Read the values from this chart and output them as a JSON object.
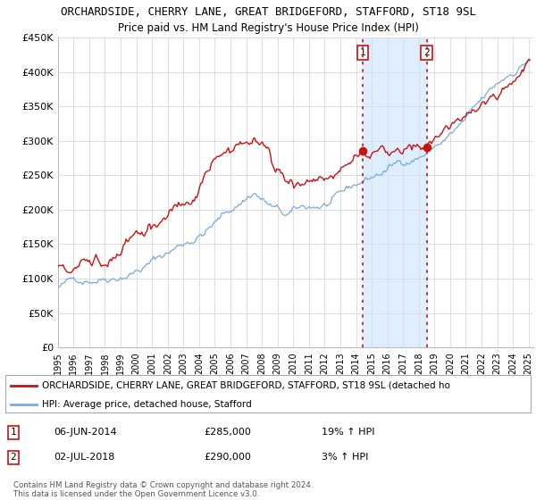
{
  "title": "ORCHARDSIDE, CHERRY LANE, GREAT BRIDGEFORD, STAFFORD, ST18 9SL",
  "subtitle": "Price paid vs. HM Land Registry's House Price Index (HPI)",
  "ylim": [
    0,
    450000
  ],
  "yticks": [
    0,
    50000,
    100000,
    150000,
    200000,
    250000,
    300000,
    350000,
    400000,
    450000
  ],
  "ytick_labels": [
    "£0",
    "£50K",
    "£100K",
    "£150K",
    "£200K",
    "£250K",
    "£300K",
    "£350K",
    "£400K",
    "£450K"
  ],
  "sale1_date": 2014.43,
  "sale1_price": 285000,
  "sale2_date": 2018.5,
  "sale2_price": 290000,
  "hpi_color": "#7aaadd",
  "price_color": "#cc1111",
  "vline_color": "#cc1111",
  "highlight_color": "#ddeeff",
  "legend_label_price": "ORCHARDSIDE, CHERRY LANE, GREAT BRIDGEFORD, STAFFORD, ST18 9SL (detached ho",
  "legend_label_hpi": "HPI: Average price, detached house, Stafford",
  "footer": "Contains HM Land Registry data © Crown copyright and database right 2024.\nThis data is licensed under the Open Government Licence v3.0.",
  "background_color": "#ffffff",
  "plot_bg_color": "#ffffff",
  "grid_color": "#dddddd"
}
